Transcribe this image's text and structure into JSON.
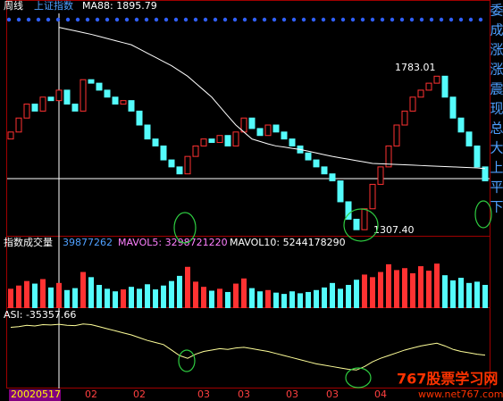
{
  "chart_data": {
    "type": "candlestick",
    "period": "周线",
    "title": "上证指数",
    "ma_label": "MA88: 1895.79",
    "categories": [
      "20020517",
      null,
      null,
      null,
      null,
      null,
      null,
      null,
      null,
      null,
      "02",
      null,
      null,
      null,
      null,
      null,
      "02",
      null,
      null,
      null,
      null,
      null,
      null,
      null,
      "03",
      null,
      null,
      null,
      null,
      "03",
      null,
      null,
      null,
      null,
      null,
      "03",
      null,
      null,
      null,
      null,
      "03",
      null,
      null,
      null,
      null,
      null,
      "04",
      null,
      null,
      null,
      null,
      null,
      null,
      null,
      null,
      null,
      null,
      null,
      null,
      null
    ],
    "open": [
      1580,
      1600,
      1640,
      1680,
      1660,
      1700,
      1690,
      1720,
      1680,
      1660,
      1750,
      1740,
      1720,
      1700,
      1680,
      1690,
      1660,
      1620,
      1580,
      1560,
      1520,
      1500,
      1480,
      1530,
      1560,
      1580,
      1570,
      1590,
      1560,
      1600,
      1640,
      1610,
      1590,
      1620,
      1600,
      1580,
      1560,
      1540,
      1520,
      1500,
      1480,
      1460,
      1400,
      1350,
      1320,
      1380,
      1450,
      1500,
      1560,
      1620,
      1660,
      1700,
      1720,
      1740,
      1760,
      1700,
      1640,
      1600,
      1560,
      1500
    ],
    "close": [
      1600,
      1640,
      1680,
      1660,
      1700,
      1690,
      1720,
      1680,
      1660,
      1750,
      1740,
      1720,
      1700,
      1680,
      1690,
      1660,
      1620,
      1580,
      1560,
      1520,
      1500,
      1480,
      1530,
      1560,
      1580,
      1570,
      1590,
      1560,
      1600,
      1640,
      1610,
      1590,
      1620,
      1600,
      1580,
      1560,
      1540,
      1520,
      1500,
      1480,
      1460,
      1400,
      1350,
      1320,
      1380,
      1450,
      1500,
      1560,
      1620,
      1660,
      1700,
      1720,
      1740,
      1760,
      1700,
      1640,
      1600,
      1560,
      1500,
      1460
    ],
    "ma88": [
      null,
      null,
      null,
      null,
      null,
      null,
      1900,
      1895,
      1890,
      1885,
      1880,
      1874,
      1868,
      1862,
      1856,
      1850,
      1838,
      1826,
      1814,
      1802,
      1790,
      1775,
      1760,
      1740,
      1720,
      1700,
      1673,
      1646,
      1620,
      1600,
      1580,
      1573,
      1566,
      1560,
      1557,
      1553,
      1550,
      1545,
      1540,
      1535,
      1530,
      1526,
      1522,
      1518,
      1514,
      1510,
      1509,
      1508,
      1507,
      1506,
      1505,
      1504,
      1503,
      1502,
      1501,
      1500,
      1499,
      1498,
      1497,
      1495
    ],
    "ylim": [
      1300,
      1940
    ],
    "up_color": "#ff3232",
    "down_color": "#54fcfc",
    "ma_color": "#ffffff",
    "annotations": [
      "1783.01",
      "1307.40"
    ],
    "volume": {
      "title": "指数成交量",
      "labels": [
        "39877262",
        "MAVOL5: 3298721220",
        "MAVOL10: 5244178290"
      ],
      "values": [
        3000000000,
        3500000000,
        4200000000,
        3800000000,
        4500000000,
        3200000000,
        3900000000,
        2800000000,
        3100000000,
        5600000000,
        4800000000,
        3600000000,
        3000000000,
        2600000000,
        2900000000,
        3300000000,
        3000000000,
        3700000000,
        2900000000,
        3500000000,
        4200000000,
        5000000000,
        6400000000,
        4100000000,
        3300000000,
        2700000000,
        3000000000,
        2500000000,
        3800000000,
        4600000000,
        3100000000,
        2600000000,
        2800000000,
        2400000000,
        2200000000,
        2600000000,
        2300000000,
        2500000000,
        2800000000,
        3200000000,
        3900000000,
        3000000000,
        3600000000,
        4400000000,
        5200000000,
        4800000000,
        5600000000,
        6800000000,
        5900000000,
        6200000000,
        5400000000,
        6500000000,
        5800000000,
        6900000000,
        5100000000,
        4300000000,
        4700000000,
        3900000000,
        4100000000,
        3600000000
      ],
      "ylim": [
        0,
        9000000000
      ]
    },
    "asi": {
      "label": "ASI: -35357.66",
      "color": "#ffff99",
      "values": [
        5000,
        6000,
        8000,
        7000,
        9000,
        8500,
        9500,
        8000,
        7500,
        10000,
        9000,
        6000,
        3000,
        0,
        -3000,
        -6000,
        -10000,
        -14000,
        -17000,
        -20000,
        -28000,
        -36000,
        -40000,
        -34000,
        -30000,
        -28000,
        -26000,
        -27000,
        -25000,
        -24000,
        -26000,
        -28000,
        -30000,
        -33000,
        -36000,
        -39000,
        -42000,
        -45000,
        -48000,
        -50000,
        -52000,
        -54000,
        -56000,
        -57000,
        -52000,
        -45000,
        -40000,
        -36000,
        -32000,
        -28000,
        -25000,
        -22000,
        -20000,
        -18000,
        -22000,
        -27000,
        -30000,
        -32000,
        -34000,
        -35357.66
      ],
      "ylim": [
        -80000,
        20000
      ]
    },
    "side_labels": [
      "委",
      "成",
      "涨",
      "涨",
      "震",
      "现",
      "总",
      "大",
      "上",
      "平",
      "下"
    ],
    "watermark": [
      "767股票学习网",
      "www.net767.com"
    ]
  }
}
